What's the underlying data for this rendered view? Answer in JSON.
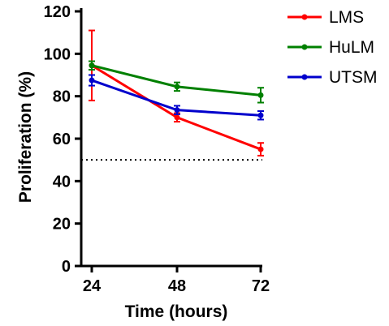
{
  "chart_data": {
    "type": "line",
    "x": [
      24,
      48,
      72
    ],
    "x_ticks": [
      "24",
      "48",
      "72"
    ],
    "xlabel": "Time (hours)",
    "ylabel": "Proliferation (%)",
    "ylim": [
      0,
      120
    ],
    "y_ticks": [
      "0",
      "20",
      "40",
      "60",
      "80",
      "100",
      "120"
    ],
    "reference_line": {
      "y": 50,
      "style": "dotted"
    },
    "legend_position": "top-right",
    "series": [
      {
        "name": "LMS",
        "color": "#ff0000",
        "values": [
          94.5,
          70,
          55
        ],
        "errors": [
          16.5,
          2,
          3
        ]
      },
      {
        "name": "HuLM",
        "color": "#008000",
        "values": [
          94.5,
          84.5,
          80.5
        ],
        "errors": [
          2,
          2,
          3.5
        ]
      },
      {
        "name": "UTSM",
        "color": "#0000cc",
        "values": [
          87.5,
          73.5,
          71
        ],
        "errors": [
          2.5,
          2,
          2
        ]
      }
    ]
  }
}
